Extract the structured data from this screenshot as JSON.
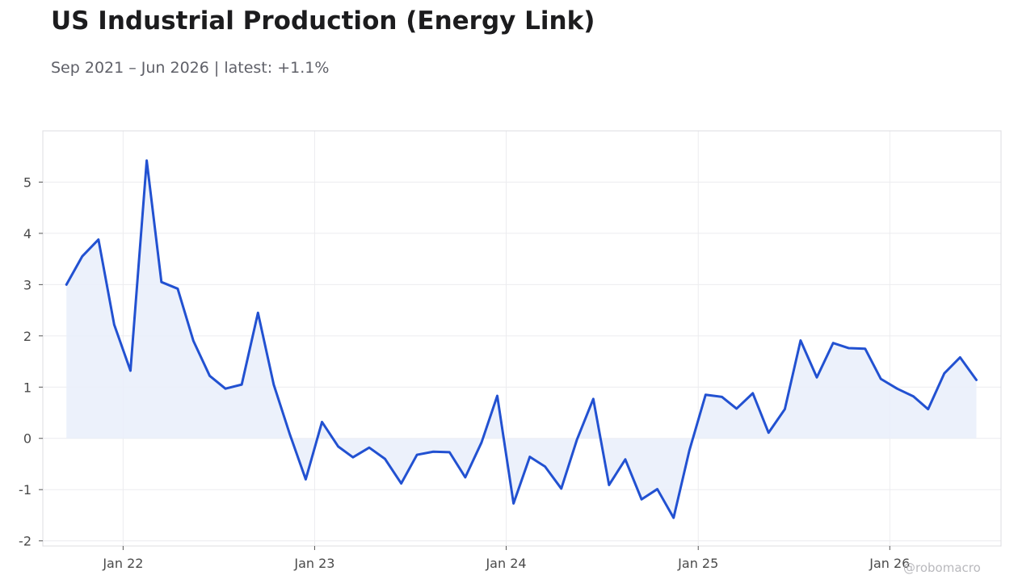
{
  "title": "US Industrial Production (Energy Link)",
  "subtitle": "Sep 2021 – Jun 2026 | latest: +1.1%",
  "watermark": "@robomacro",
  "colors": {
    "line": "#2251d1",
    "fill": "#e9eefa",
    "grid": "#ececef",
    "frame": "#dcdce0"
  },
  "chart_data": {
    "type": "area",
    "grid": true,
    "legend": "none",
    "xlim": [
      "2021-08-01",
      "2026-08-01"
    ],
    "ylim": [
      -2.1,
      6.0
    ],
    "y_ticks": [
      5,
      4,
      3,
      2,
      1,
      0,
      -1,
      -2
    ],
    "y_tick_labels": [
      "5",
      "4",
      "3",
      "2",
      "1",
      "0",
      "-1",
      "-2"
    ],
    "x_ticks": [
      "2022-01-01",
      "2023-01-01",
      "2024-01-01",
      "2025-01-01",
      "2026-01-01"
    ],
    "x_tick_labels": [
      "Jan 22",
      "Jan 23",
      "Jan 24",
      "Jan 25",
      "Jan 26"
    ],
    "series": [
      {
        "x": [
          "2021-09",
          "2021-10",
          "2021-11",
          "2021-12",
          "2022-01",
          "2022-02",
          "2022-03",
          "2022-04",
          "2022-05",
          "2022-06",
          "2022-07",
          "2022-08",
          "2022-09",
          "2022-10",
          "2022-11",
          "2022-12",
          "2023-01",
          "2023-02",
          "2023-03",
          "2023-04",
          "2023-05",
          "2023-06",
          "2023-07",
          "2023-08",
          "2023-09",
          "2023-10",
          "2023-11",
          "2023-12",
          "2024-01",
          "2024-02",
          "2024-03",
          "2024-04",
          "2024-05",
          "2024-06",
          "2024-07",
          "2024-08",
          "2024-09",
          "2024-10",
          "2024-11",
          "2024-12",
          "2025-01",
          "2025-02",
          "2025-03",
          "2025-04",
          "2025-05",
          "2025-06",
          "2025-07",
          "2025-08",
          "2025-09",
          "2025-10",
          "2025-11",
          "2025-12",
          "2026-01",
          "2026-02",
          "2026-03",
          "2026-04",
          "2026-05",
          "2026-06"
        ],
        "values": [
          3.0,
          3.55,
          3.88,
          2.22,
          1.32,
          5.42,
          3.05,
          2.92,
          1.9,
          1.22,
          0.97,
          1.05,
          2.45,
          1.05,
          0.07,
          -0.8,
          0.32,
          -0.16,
          -0.37,
          -0.18,
          -0.4,
          -0.88,
          -0.32,
          -0.26,
          -0.27,
          -0.76,
          -0.08,
          0.83,
          -1.27,
          -0.36,
          -0.55,
          -0.98,
          -0.02,
          0.77,
          -0.91,
          -0.41,
          -1.19,
          -0.99,
          -1.55,
          -0.24,
          0.85,
          0.81,
          0.58,
          0.88,
          0.11,
          0.57,
          1.91,
          1.19,
          1.86,
          1.76,
          1.75,
          1.16,
          0.97,
          0.82,
          0.57,
          1.27,
          1.58,
          1.14
        ]
      }
    ]
  }
}
